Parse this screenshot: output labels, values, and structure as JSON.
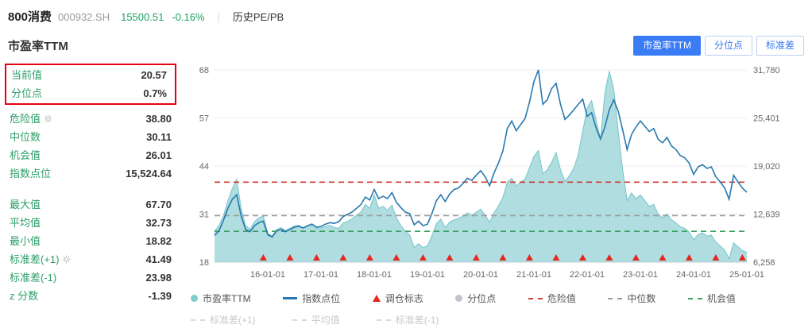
{
  "theme": {
    "green": "#1ba15e",
    "accent_blue": "#3a7bf6",
    "highlight_red": "#e60012"
  },
  "header": {
    "index_name": "800消费",
    "index_code": "000932.SH",
    "index_value": "15500.51",
    "index_change": "-0.16%",
    "divider": "|",
    "history_link": "历史PE/PB"
  },
  "section": {
    "title": "市盈率TTM",
    "tabs": [
      {
        "label": "市盈率TTM",
        "active": true
      },
      {
        "label": "分位点",
        "active": false
      },
      {
        "label": "标准差",
        "active": false
      }
    ]
  },
  "stats": {
    "rows": [
      {
        "label": "当前值",
        "value": "20.57",
        "highlighted": true
      },
      {
        "label": "分位点",
        "value": "0.7%",
        "highlighted": true
      },
      {
        "label": "危险值",
        "value": "38.80",
        "gear": true
      },
      {
        "label": "中位数",
        "value": "30.11"
      },
      {
        "label": "机会值",
        "value": "26.01"
      },
      {
        "label": "指数点位",
        "value": "15,524.64"
      },
      {
        "label": "最大值",
        "value": "67.70"
      },
      {
        "label": "平均值",
        "value": "32.73"
      },
      {
        "label": "最小值",
        "value": "18.82"
      },
      {
        "label": "标准差(+1)",
        "value": "41.49",
        "gear": true
      },
      {
        "label": "标准差(-1)",
        "value": "23.98"
      },
      {
        "label": "z 分数",
        "value": "-1.39"
      }
    ]
  },
  "chart_data": {
    "type": "area",
    "x_start": "2015-01",
    "x_end": "2025-01",
    "x_freq": "monthly",
    "left_axis": {
      "min": 18,
      "max": 68,
      "ticks": [
        "68",
        "57",
        "44",
        "31",
        "18"
      ]
    },
    "right_axis": {
      "min": 6258,
      "max": 31780,
      "ticks": [
        "31,780",
        "25,401",
        "19,020",
        "12,639",
        "6,258"
      ]
    },
    "x_ticks": [
      {
        "month": "2016-01",
        "label": "16-01-01"
      },
      {
        "month": "2017-01",
        "label": "17-01-01"
      },
      {
        "month": "2018-01",
        "label": "18-01-01"
      },
      {
        "month": "2019-01",
        "label": "19-01-01"
      },
      {
        "month": "2020-01",
        "label": "20-01-01"
      },
      {
        "month": "2021-01",
        "label": "21-01-01"
      },
      {
        "month": "2022-01",
        "label": "22-01-01"
      },
      {
        "month": "2023-01",
        "label": "23-01-01"
      },
      {
        "month": "2024-01",
        "label": "24-01-01"
      },
      {
        "month": "2025-01",
        "label": "25-01-01"
      }
    ],
    "series": [
      {
        "name": "市盈率TTM",
        "type": "area",
        "axis": "left",
        "color": "#9bd4d8",
        "values": [
          26.0,
          27.5,
          30.0,
          34.0,
          37.0,
          39.5,
          32.0,
          27.5,
          26.5,
          28.5,
          29.5,
          30.0,
          25.5,
          24.8,
          26.5,
          27.0,
          26.2,
          26.8,
          27.4,
          27.6,
          26.8,
          27.5,
          28.0,
          26.8,
          26.9,
          27.3,
          27.6,
          27.0,
          26.8,
          28.2,
          28.6,
          29.2,
          30.2,
          31.0,
          33.0,
          32.0,
          35.5,
          32.0,
          32.5,
          31.5,
          32.8,
          29.5,
          27.5,
          26.0,
          25.0,
          21.8,
          22.8,
          21.8,
          22.2,
          24.8,
          28.0,
          29.2,
          27.0,
          28.4,
          29.0,
          29.4,
          30.0,
          30.8,
          30.2,
          31.0,
          31.8,
          30.2,
          28.4,
          30.8,
          32.6,
          34.8,
          38.8,
          39.8,
          37.8,
          38.8,
          39.6,
          42.5,
          45.5,
          47.0,
          41.0,
          42.0,
          44.0,
          46.5,
          42.0,
          39.0,
          40.5,
          42.5,
          46.0,
          52.0,
          58.0,
          60.0,
          55.0,
          50.0,
          62.0,
          67.7,
          63.0,
          52.0,
          42.0,
          34.0,
          36.0,
          34.5,
          35.5,
          34.0,
          32.5,
          33.0,
          30.5,
          29.5,
          30.5,
          29.0,
          28.2,
          27.2,
          26.8,
          25.8,
          23.8,
          25.2,
          25.6,
          24.8,
          25.0,
          23.2,
          22.2,
          21.2,
          18.82,
          23.0,
          22.0,
          21.0,
          20.57
        ]
      },
      {
        "name": "指数点位",
        "type": "line",
        "axis": "right",
        "color": "#2878af",
        "values": [
          9800,
          10400,
          11800,
          13400,
          14600,
          15200,
          12400,
          10600,
          10300,
          11100,
          11500,
          11700,
          9900,
          9600,
          10400,
          10600,
          10300,
          10600,
          10900,
          11000,
          10800,
          11100,
          11300,
          10900,
          11000,
          11300,
          11500,
          11400,
          11600,
          12300,
          12600,
          12900,
          13400,
          13900,
          14900,
          14500,
          15900,
          14700,
          15000,
          14700,
          15500,
          14200,
          13500,
          12900,
          12700,
          11200,
          11700,
          11100,
          11300,
          12700,
          14400,
          15200,
          14300,
          15300,
          15900,
          16100,
          16700,
          17400,
          17100,
          17800,
          18400,
          17600,
          16400,
          18100,
          19400,
          21000,
          24000,
          25000,
          23700,
          24500,
          25300,
          27500,
          30200,
          31780,
          27200,
          27800,
          29300,
          30000,
          27200,
          25200,
          25800,
          26500,
          27200,
          27900,
          25600,
          26100,
          24100,
          22600,
          24200,
          26500,
          27800,
          26300,
          23800,
          21200,
          23200,
          24200,
          25000,
          24300,
          23600,
          24000,
          22600,
          22100,
          22800,
          21700,
          21200,
          20400,
          20100,
          19400,
          17900,
          18900,
          19200,
          18700,
          18900,
          17600,
          16900,
          16100,
          14600,
          17800,
          16900,
          16100,
          15524.64
        ]
      }
    ],
    "hlines": [
      {
        "key": "danger",
        "name": "危险值",
        "value": 38.8,
        "color": "#cf3a30",
        "style": "dashed"
      },
      {
        "key": "median",
        "name": "中位数",
        "value": 30.11,
        "color": "#9a9a9a",
        "style": "dashed"
      },
      {
        "key": "opportunity",
        "name": "机会值",
        "value": 26.01,
        "color": "#3aa160",
        "style": "dashed"
      }
    ],
    "markers": {
      "key": "rebalance",
      "name": "调仓标志",
      "shape": "triangle-up",
      "color": "#e5281e",
      "months": [
        "2015-12",
        "2016-06",
        "2016-12",
        "2017-06",
        "2017-12",
        "2018-06",
        "2018-12",
        "2019-06",
        "2019-12",
        "2020-06",
        "2020-12",
        "2021-06",
        "2021-12",
        "2022-06",
        "2022-12",
        "2023-06",
        "2023-12",
        "2024-06",
        "2024-12"
      ]
    },
    "legend": {
      "row1": [
        {
          "key": "pe-ttm",
          "label": "市盈率TTM",
          "marker": "dot",
          "color": "#7fccd0"
        },
        {
          "key": "index-points",
          "label": "指数点位",
          "marker": "line",
          "color": "#2878af"
        },
        {
          "key": "rebalance",
          "label": "调仓标志",
          "marker": "triangle",
          "color": "#e5281e"
        },
        {
          "key": "percentile",
          "label": "分位点",
          "marker": "dot",
          "color": "#c0c4cc"
        },
        {
          "key": "danger",
          "label": "危险值",
          "marker": "dash",
          "color": "#cf3a30"
        },
        {
          "key": "median",
          "label": "中位数",
          "marker": "dash",
          "color": "#9a9a9a"
        },
        {
          "key": "opportunity",
          "label": "机会值",
          "marker": "dash",
          "color": "#3aa160"
        }
      ],
      "row2": [
        {
          "key": "std-plus1",
          "label": "标准差(+1)",
          "marker": "dash",
          "color": "#d9d9d9",
          "dimmed": true
        },
        {
          "key": "mean",
          "label": "平均值",
          "marker": "dash",
          "color": "#d9d9d9",
          "dimmed": true
        },
        {
          "key": "std-minus1",
          "label": "标准差(-1)",
          "marker": "dash",
          "color": "#d9d9d9",
          "dimmed": true
        }
      ]
    }
  }
}
